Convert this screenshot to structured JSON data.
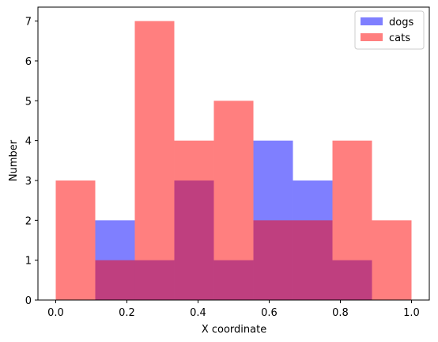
{
  "chart_data": {
    "type": "bar",
    "title": "",
    "xlabel": "X coordinate",
    "ylabel": "Number",
    "xlim": [
      -0.05,
      1.05
    ],
    "ylim": [
      0,
      7.35
    ],
    "x_ticks": [
      0.0,
      0.2,
      0.4,
      0.6,
      0.8,
      1.0
    ],
    "x_tick_labels": [
      "0.0",
      "0.2",
      "0.4",
      "0.6",
      "0.8",
      "1.0"
    ],
    "y_ticks": [
      0,
      1,
      2,
      3,
      4,
      5,
      6,
      7
    ],
    "y_tick_labels": [
      "0",
      "1",
      "2",
      "3",
      "4",
      "5",
      "6",
      "7"
    ],
    "bin_edges": [
      0.0,
      0.1111,
      0.2222,
      0.3333,
      0.4444,
      0.5556,
      0.6667,
      0.7778,
      0.8889,
      1.0
    ],
    "series": [
      {
        "name": "dogs",
        "color": "#0000ff",
        "alpha": 0.5,
        "values": [
          0,
          2,
          1,
          3,
          1,
          4,
          3,
          1,
          0
        ]
      },
      {
        "name": "cats",
        "color": "#ff0000",
        "alpha": 0.5,
        "values": [
          3,
          1,
          7,
          4,
          5,
          2,
          2,
          4,
          2
        ]
      }
    ],
    "legend_position": "top-right",
    "grid": false
  }
}
